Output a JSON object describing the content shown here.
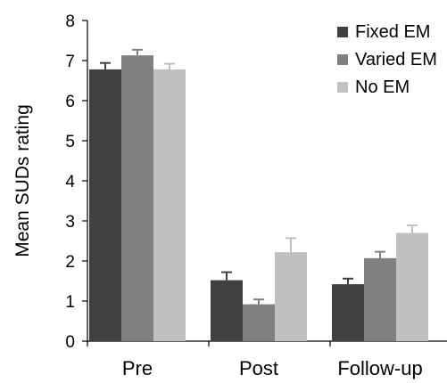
{
  "chart_data": {
    "type": "bar",
    "title": "",
    "xlabel": "",
    "ylabel": "Mean SUDs rating",
    "ylim": [
      0,
      8
    ],
    "yticks": [
      0,
      1,
      2,
      3,
      4,
      5,
      6,
      7,
      8
    ],
    "grid": false,
    "legend_position": "top-right",
    "categories": [
      "Pre",
      "Post",
      "Follow-up"
    ],
    "series": [
      {
        "name": "Fixed EM",
        "color": "#404040",
        "values": [
          6.78,
          1.52,
          1.42
        ],
        "errors": [
          0.16,
          0.2,
          0.14
        ]
      },
      {
        "name": "Varied EM",
        "color": "#808080",
        "values": [
          7.13,
          0.92,
          2.07
        ],
        "errors": [
          0.14,
          0.12,
          0.16
        ]
      },
      {
        "name": "No EM",
        "color": "#c0c0c0",
        "values": [
          6.78,
          2.22,
          2.7
        ],
        "errors": [
          0.14,
          0.35,
          0.19
        ]
      }
    ]
  }
}
